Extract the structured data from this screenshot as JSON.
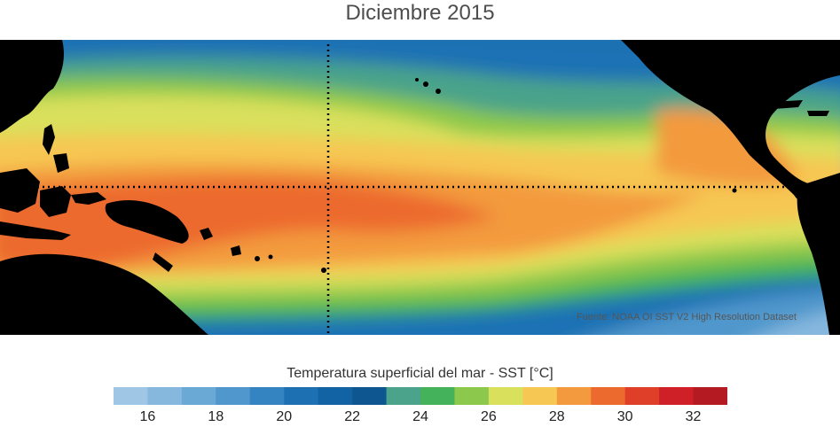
{
  "title": "Diciembre 2015",
  "source_note": "Fuente: NOAA OI SST V2 High Resolution Dataset",
  "colorbar": {
    "label": "Temperatura superficial del mar - SST  [°C]",
    "ticks": [
      "16",
      "18",
      "20",
      "22",
      "24",
      "26",
      "28",
      "30",
      "32"
    ],
    "min": 15,
    "max": 33,
    "colors": [
      "#9fc6e4",
      "#86b8de",
      "#6aa8d6",
      "#4f97cc",
      "#3484c1",
      "#1d71b3",
      "#1263a3",
      "#0e5690",
      "#4aa38a",
      "#43b25a",
      "#8cc84c",
      "#d9e05c",
      "#f6c752",
      "#f39a3e",
      "#ec6a2d",
      "#df3f28",
      "#cf2027",
      "#b31a22"
    ]
  },
  "map": {
    "region": "Tropical Pacific Ocean",
    "land_color": "#000000",
    "guides": "equator and 180° meridian dotted lines"
  }
}
